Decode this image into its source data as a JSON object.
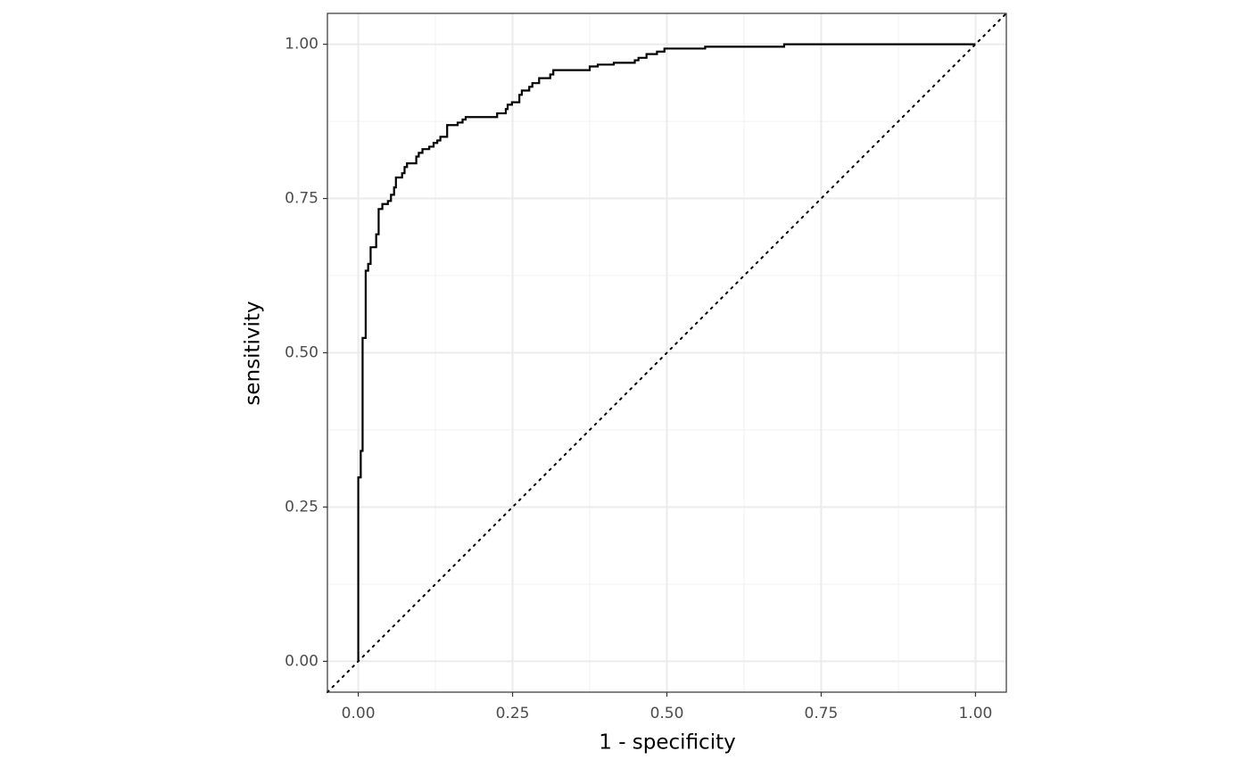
{
  "chart_data": {
    "type": "line",
    "x_label": "1 - specificity",
    "y_label": "sensitivity",
    "x": [
      0,
      0,
      0.004,
      0.004,
      0.007,
      0.007,
      0.012,
      0.012,
      0.016,
      0.016,
      0.02,
      0.02,
      0.029,
      0.029,
      0.033,
      0.033,
      0.039,
      0.039,
      0.048,
      0.048,
      0.053,
      0.053,
      0.058,
      0.058,
      0.061,
      0.061,
      0.071,
      0.071,
      0.075,
      0.075,
      0.079,
      0.079,
      0.094,
      0.094,
      0.098,
      0.098,
      0.104,
      0.104,
      0.115,
      0.115,
      0.122,
      0.122,
      0.128,
      0.128,
      0.133,
      0.133,
      0.144,
      0.144,
      0.161,
      0.161,
      0.169,
      0.169,
      0.174,
      0.174,
      0.225,
      0.225,
      0.239,
      0.239,
      0.242,
      0.242,
      0.249,
      0.249,
      0.261,
      0.261,
      0.265,
      0.265,
      0.277,
      0.277,
      0.282,
      0.282,
      0.293,
      0.293,
      0.311,
      0.311,
      0.316,
      0.316,
      0.375,
      0.375,
      0.388,
      0.388,
      0.414,
      0.414,
      0.448,
      0.448,
      0.454,
      0.454,
      0.467,
      0.467,
      0.484,
      0.484,
      0.496,
      0.496,
      0.562,
      0.562,
      0.69,
      0.69,
      1
    ],
    "values": [
      0,
      0.298,
      0.298,
      0.341,
      0.341,
      0.524,
      0.524,
      0.633,
      0.633,
      0.644,
      0.644,
      0.671,
      0.671,
      0.692,
      0.692,
      0.733,
      0.733,
      0.741,
      0.741,
      0.746,
      0.746,
      0.756,
      0.756,
      0.768,
      0.768,
      0.784,
      0.784,
      0.791,
      0.791,
      0.801,
      0.801,
      0.807,
      0.807,
      0.818,
      0.818,
      0.824,
      0.824,
      0.83,
      0.83,
      0.834,
      0.834,
      0.84,
      0.84,
      0.844,
      0.844,
      0.85,
      0.85,
      0.869,
      0.869,
      0.873,
      0.873,
      0.878,
      0.878,
      0.882,
      0.882,
      0.888,
      0.888,
      0.895,
      0.895,
      0.902,
      0.902,
      0.906,
      0.906,
      0.918,
      0.918,
      0.925,
      0.925,
      0.931,
      0.931,
      0.937,
      0.937,
      0.945,
      0.945,
      0.951,
      0.951,
      0.958,
      0.958,
      0.964,
      0.964,
      0.967,
      0.967,
      0.97,
      0.97,
      0.974,
      0.974,
      0.978,
      0.978,
      0.984,
      0.984,
      0.988,
      0.988,
      0.993,
      0.993,
      0.996,
      0.996,
      1,
      1
    ],
    "color": "#000000",
    "xlim": [
      -0.05,
      1.05
    ],
    "ylim": [
      -0.05,
      1.05
    ],
    "xticks": [
      {
        "value": 0,
        "label": "0.00"
      },
      {
        "value": 0.25,
        "label": "0.25"
      },
      {
        "value": 0.5,
        "label": "0.50"
      },
      {
        "value": 0.75,
        "label": "0.75"
      },
      {
        "value": 1,
        "label": "1.00"
      }
    ],
    "yticks": [
      {
        "value": 0,
        "label": "0.00"
      },
      {
        "value": 0.25,
        "label": "0.25"
      },
      {
        "value": 0.5,
        "label": "0.50"
      },
      {
        "value": 0.75,
        "label": "0.75"
      },
      {
        "value": 1,
        "label": "1.00"
      }
    ],
    "minor_ticks": [
      0.125,
      0.375,
      0.625,
      0.875
    ],
    "grid": true,
    "diagonal": true
  }
}
